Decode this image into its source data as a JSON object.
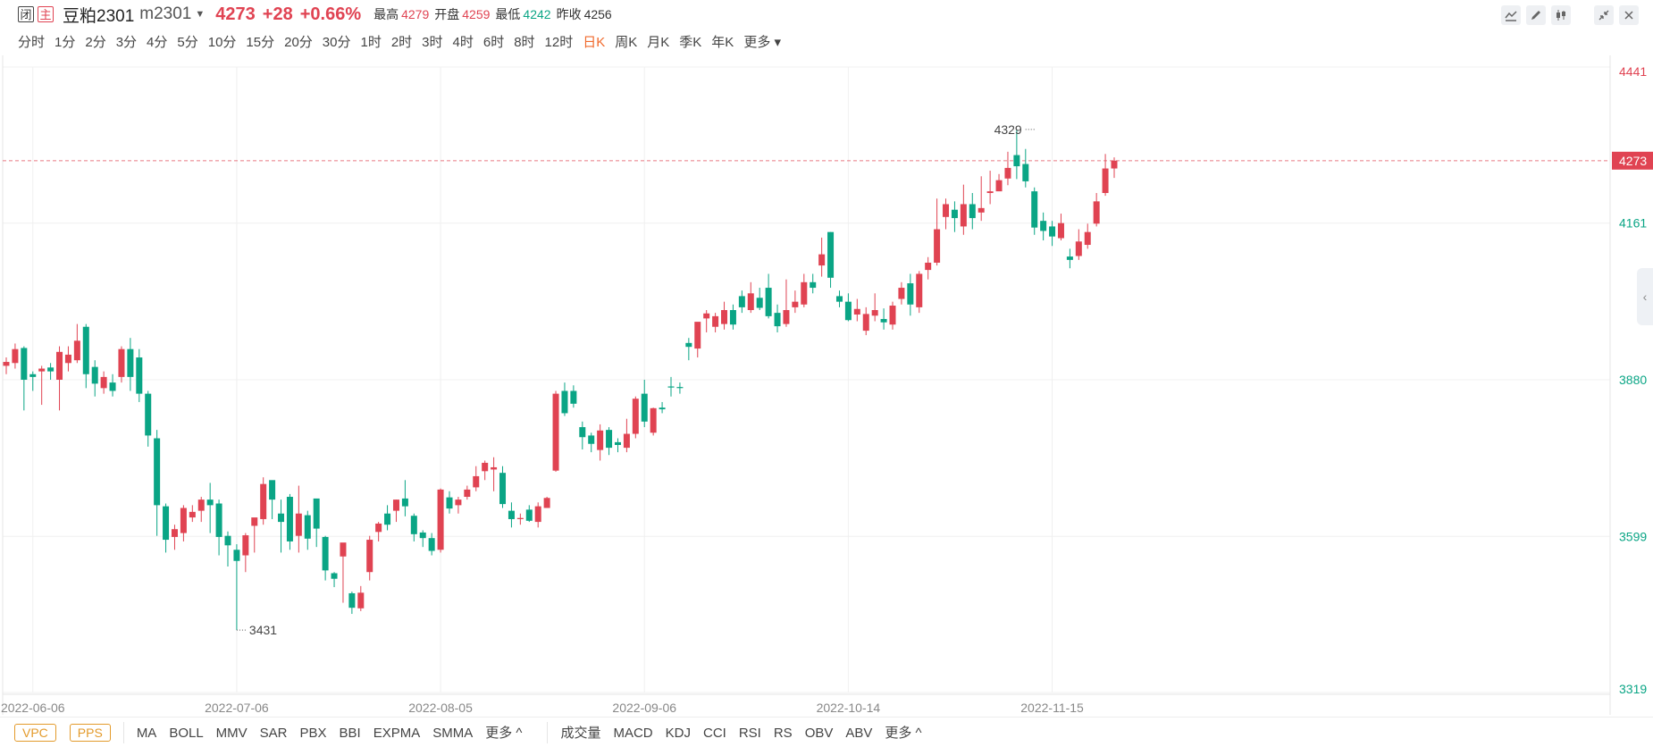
{
  "header": {
    "badge_closed": "闭",
    "badge_main": "主",
    "symbol_name": "豆粕2301",
    "symbol_code": "m2301",
    "price": "4273",
    "change": "+28",
    "change_pct": "+0.66%",
    "high_label": "最高",
    "high": "4279",
    "open_label": "开盘",
    "open": "4259",
    "low_label": "最低",
    "low": "4242",
    "prev_close_label": "昨收",
    "prev_close": "4256"
  },
  "periods": [
    "分时",
    "1分",
    "2分",
    "3分",
    "4分",
    "5分",
    "10分",
    "15分",
    "20分",
    "30分",
    "1时",
    "2时",
    "3时",
    "4时",
    "6时",
    "8时",
    "12时",
    "日K",
    "周K",
    "月K",
    "季K",
    "年K",
    "更多"
  ],
  "active_period": "日K",
  "indicators_main": [
    "MA",
    "BOLL",
    "MMV",
    "SAR",
    "PBX",
    "BBI",
    "EXPMA",
    "SMMA",
    "更多 ^"
  ],
  "indicators_sub": [
    "成交量",
    "MACD",
    "KDJ",
    "CCI",
    "RSI",
    "RS",
    "OBV",
    "ABV",
    "更多 ^"
  ],
  "indicator_boxes": [
    "VPC",
    "PPS"
  ],
  "icons": [
    "line-tool-icon",
    "pen-tool-icon",
    "candle-style-icon",
    "collapse-icon",
    "close-icon",
    "side-collapse-icon"
  ],
  "colors": {
    "up": "#e04352",
    "down": "#0aa585",
    "active": "#f06a2c",
    "box": "#e39a2b"
  },
  "chart_data": {
    "type": "candlestick",
    "y_axis_labels": [
      "4441",
      "4273",
      "4161",
      "3880",
      "3599",
      "3319"
    ],
    "ylim": [
      3319,
      4441
    ],
    "last_price": 4273,
    "x_tick_labels": [
      "2022-06-06",
      "2022-07-06",
      "2022-08-05",
      "2022-09-06",
      "2022-10-14",
      "2022-11-15"
    ],
    "x_tick_index": [
      3,
      26,
      49,
      72,
      95,
      118
    ],
    "annotations": [
      {
        "text": "3431",
        "index": 26,
        "value": 3431
      },
      {
        "text": "4329",
        "index": 116,
        "value": 4329
      }
    ],
    "candles": [
      [
        3905,
        3912,
        3890,
        3920
      ],
      [
        3910,
        3935,
        3900,
        3945
      ],
      [
        3937,
        3880,
        3825,
        3940
      ],
      [
        3890,
        3885,
        3860,
        3895
      ],
      [
        3895,
        3900,
        3835,
        3905
      ],
      [
        3902,
        3895,
        3880,
        3910
      ],
      [
        3880,
        3930,
        3825,
        3940
      ],
      [
        3910,
        3925,
        3895,
        3940
      ],
      [
        3915,
        3950,
        3910,
        3980
      ],
      [
        3975,
        3890,
        3865,
        3980
      ],
      [
        3903,
        3873,
        3850,
        3915
      ],
      [
        3865,
        3885,
        3855,
        3895
      ],
      [
        3875,
        3860,
        3850,
        3890
      ],
      [
        3885,
        3935,
        3875,
        3940
      ],
      [
        3935,
        3885,
        3860,
        3955
      ],
      [
        3920,
        3855,
        3840,
        3935
      ],
      [
        3855,
        3780,
        3760,
        3860
      ],
      [
        3775,
        3655,
        3600,
        3790
      ],
      [
        3653,
        3593,
        3570,
        3658
      ],
      [
        3598,
        3612,
        3575,
        3620
      ],
      [
        3605,
        3650,
        3590,
        3655
      ],
      [
        3633,
        3643,
        3625,
        3655
      ],
      [
        3645,
        3665,
        3625,
        3670
      ],
      [
        3665,
        3655,
        3605,
        3695
      ],
      [
        3658,
        3598,
        3565,
        3665
      ],
      [
        3600,
        3583,
        3545,
        3608
      ],
      [
        3575,
        3555,
        3431,
        3585
      ],
      [
        3565,
        3601,
        3535,
        3605
      ],
      [
        3618,
        3633,
        3570,
        3630
      ],
      [
        3630,
        3693,
        3620,
        3705
      ],
      [
        3700,
        3665,
        3630,
        3695
      ],
      [
        3640,
        3625,
        3570,
        3665
      ],
      [
        3670,
        3590,
        3575,
        3675
      ],
      [
        3600,
        3640,
        3570,
        3690
      ],
      [
        3637,
        3595,
        3575,
        3645
      ],
      [
        3667,
        3613,
        3580,
        3665
      ],
      [
        3598,
        3538,
        3520,
        3600
      ],
      [
        3533,
        3523,
        3508,
        3535
      ],
      [
        3563,
        3588,
        3480,
        3580
      ],
      [
        3497,
        3471,
        3460,
        3500
      ],
      [
        3470,
        3498,
        3465,
        3510
      ],
      [
        3535,
        3593,
        3520,
        3600
      ],
      [
        3607,
        3622,
        3590,
        3625
      ],
      [
        3640,
        3620,
        3610,
        3655
      ],
      [
        3645,
        3665,
        3625,
        3665
      ],
      [
        3667,
        3653,
        3635,
        3700
      ],
      [
        3636,
        3603,
        3590,
        3640
      ],
      [
        3606,
        3596,
        3580,
        3610
      ],
      [
        3596,
        3573,
        3565,
        3605
      ],
      [
        3575,
        3683,
        3570,
        3685
      ],
      [
        3669,
        3649,
        3640,
        3680
      ],
      [
        3655,
        3665,
        3640,
        3670
      ],
      [
        3670,
        3683,
        3665,
        3690
      ],
      [
        3687,
        3707,
        3680,
        3725
      ],
      [
        3716,
        3731,
        3700,
        3735
      ],
      [
        3719,
        3723,
        3680,
        3741
      ],
      [
        3713,
        3657,
        3650,
        3725
      ],
      [
        3645,
        3630,
        3615,
        3660
      ],
      [
        3630,
        3632,
        3620,
        3640
      ],
      [
        3647,
        3627,
        3625,
        3655
      ],
      [
        3625,
        3653,
        3615,
        3660
      ],
      [
        3650,
        3668,
        3650,
        3670
      ],
      [
        3717,
        3855,
        3715,
        3860
      ],
      [
        3860,
        3820,
        3815,
        3875
      ],
      [
        3860,
        3837,
        3830,
        3870
      ],
      [
        3795,
        3777,
        3755,
        3805
      ],
      [
        3780,
        3765,
        3750,
        3785
      ],
      [
        3754,
        3789,
        3735,
        3800
      ],
      [
        3790,
        3758,
        3745,
        3795
      ],
      [
        3768,
        3763,
        3750,
        3775
      ],
      [
        3758,
        3783,
        3750,
        3810
      ],
      [
        3783,
        3846,
        3775,
        3850
      ],
      [
        3855,
        3805,
        3795,
        3880
      ],
      [
        3785,
        3829,
        3780,
        3830
      ],
      [
        3830,
        3827,
        3820,
        3840
      ],
      [
        3868,
        3867,
        3850,
        3885
      ],
      [
        3867,
        3866,
        3855,
        3875
      ],
      [
        3946,
        3939,
        3915,
        3955
      ],
      [
        3936,
        3984,
        3920,
        3975
      ],
      [
        3990,
        3999,
        3965,
        4005
      ],
      [
        3975,
        3994,
        3965,
        4000
      ],
      [
        3980,
        4005,
        3970,
        4020
      ],
      [
        4005,
        3979,
        3970,
        4015
      ],
      [
        4030,
        4010,
        4000,
        4040
      ],
      [
        4005,
        4035,
        4000,
        4055
      ],
      [
        4027,
        4009,
        4005,
        4045
      ],
      [
        4045,
        3994,
        3990,
        4070
      ],
      [
        4000,
        3976,
        3965,
        4015
      ],
      [
        3980,
        4005,
        3975,
        4060
      ],
      [
        4010,
        4020,
        4000,
        4040
      ],
      [
        4015,
        4055,
        4010,
        4070
      ],
      [
        4055,
        4045,
        4035,
        4070
      ],
      [
        4085,
        4105,
        4065,
        4135
      ],
      [
        4145,
        4063,
        4045,
        4145
      ],
      [
        4030,
        4020,
        4010,
        4040
      ],
      [
        4020,
        3987,
        3985,
        4035
      ],
      [
        3997,
        4007,
        3985,
        4025
      ],
      [
        3968,
        3998,
        3960,
        4010
      ],
      [
        3995,
        4005,
        3985,
        4035
      ],
      [
        3989,
        3983,
        3970,
        4008
      ],
      [
        3979,
        4013,
        3970,
        4020
      ],
      [
        4025,
        4045,
        4015,
        4055
      ],
      [
        4053,
        4015,
        3995,
        4070
      ],
      [
        4010,
        4070,
        4000,
        4075
      ],
      [
        4077,
        4090,
        4060,
        4100
      ],
      [
        4090,
        4150,
        4085,
        4205
      ],
      [
        4172,
        4195,
        4150,
        4205
      ],
      [
        4185,
        4170,
        4145,
        4200
      ],
      [
        4155,
        4195,
        4140,
        4230
      ],
      [
        4195,
        4170,
        4150,
        4215
      ],
      [
        4180,
        4188,
        4165,
        4245
      ],
      [
        4215,
        4218,
        4195,
        4255
      ],
      [
        4218,
        4238,
        4225,
        4249
      ],
      [
        4241,
        4260,
        4229,
        4289
      ],
      [
        4283,
        4263,
        4240,
        4329
      ],
      [
        4267,
        4236,
        4225,
        4294
      ],
      [
        4218,
        4153,
        4140,
        4225
      ],
      [
        4165,
        4147,
        4130,
        4180
      ],
      [
        4155,
        4137,
        4120,
        4165
      ],
      [
        4134,
        4161,
        4130,
        4178
      ],
      [
        4101,
        4095,
        4080,
        4115
      ],
      [
        4102,
        4128,
        4095,
        4150
      ],
      [
        4122,
        4145,
        4115,
        4160
      ],
      [
        4160,
        4200,
        4155,
        4215
      ],
      [
        4215,
        4259,
        4210,
        4285
      ],
      [
        4259,
        4273,
        4242,
        4279
      ]
    ]
  }
}
